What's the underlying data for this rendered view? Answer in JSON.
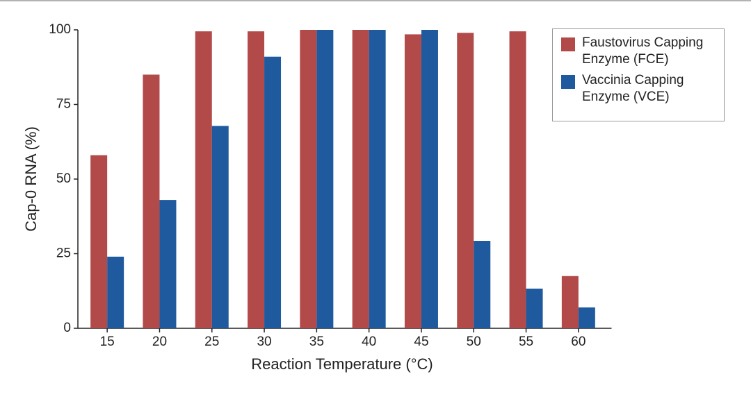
{
  "chart_data": {
    "type": "bar",
    "categories": [
      "15",
      "20",
      "25",
      "30",
      "35",
      "40",
      "45",
      "50",
      "55",
      "60"
    ],
    "series": [
      {
        "name": "Faustovirus Capping Enzyme (FCE)",
        "color": "#b24a4a",
        "values": [
          58,
          85,
          99.5,
          99.5,
          100,
          100,
          98.5,
          99,
          99.5,
          17.5
        ]
      },
      {
        "name": "Vaccinia Capping Enzyme (VCE)",
        "color": "#1f5a9e",
        "values": [
          24,
          43,
          67.8,
          91,
          100,
          100,
          100,
          29.3,
          13.3,
          7
        ]
      }
    ],
    "xlabel": "Reaction Temperature (°C)",
    "ylabel": "Cap-0 RNA (%)",
    "ylim": [
      0,
      100
    ],
    "yticks": [
      0,
      25,
      50,
      75,
      100
    ],
    "grid": false,
    "legend": "upper right"
  }
}
